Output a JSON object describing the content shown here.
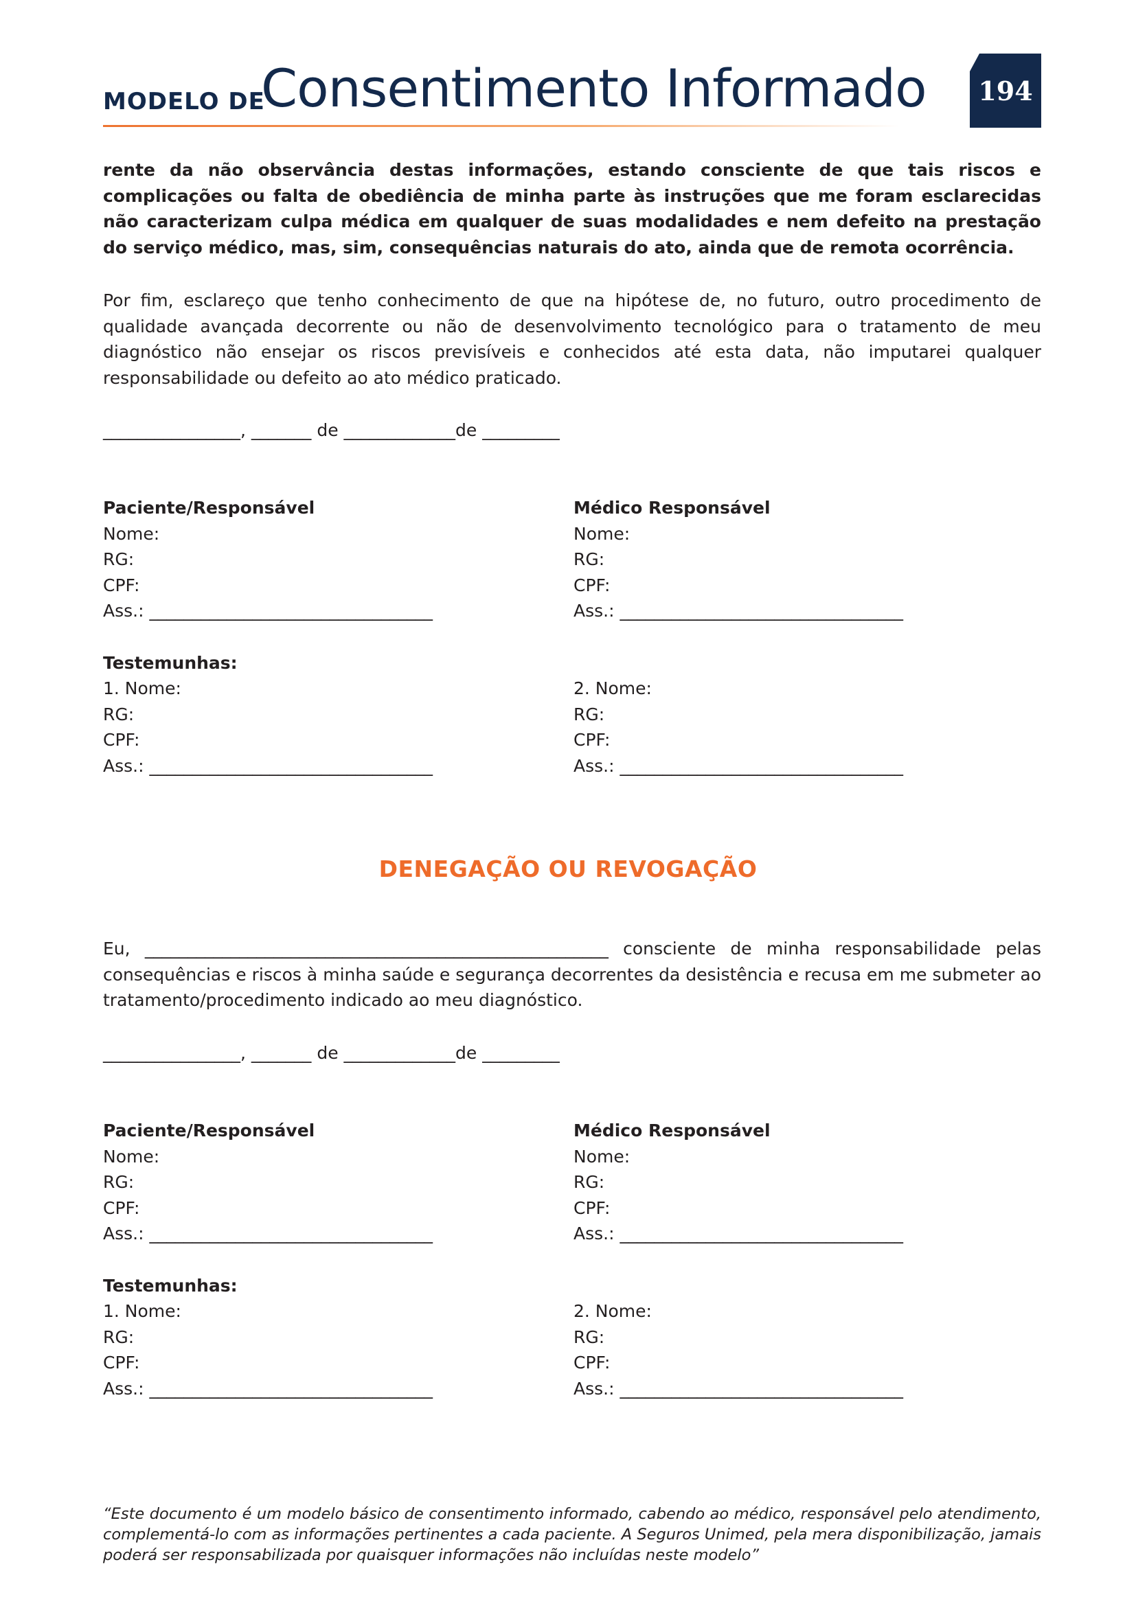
{
  "header": {
    "prefix": "MODELO DE",
    "title": "Consentimento Informado",
    "page_number": "194"
  },
  "colors": {
    "navy": "#13294b",
    "orange": "#ee6b2a"
  },
  "intro_bold": "rente da não observância destas informações, estando consciente de que tais riscos e complicações ou falta de obediência de minha parte às instruções que me foram esclarecidas não caracterizam culpa médica em qualquer de suas modalidades e nem defeito na prestação do serviço médico, mas, sim, consequências naturais do ato, ainda que de remota ocorrência.",
  "final_paragraph": "Por fim, esclareço que tenho conhecimento de que na hipótese de, no futuro, outro procedimento de qualidade avançada decorrente ou não de desenvolvimento tecnológico para o tratamento de meu diagnóstico não ensejar os riscos previsíveis e conhecidos até esta data, não imputarei qualquer responsabilidade ou defeito ao ato médico praticado.",
  "date_line": "________________, _______ de _____________de _________",
  "sig_block": {
    "patient_title": "Paciente/Responsável",
    "doctor_title": "Médico Responsável",
    "nome": "Nome:",
    "rg": "RG:",
    "cpf": "CPF:",
    "ass": "Ass.: _________________________________",
    "witnesses_title": "Testemunhas:",
    "witness1": "1. Nome:",
    "witness2": "2. Nome:"
  },
  "denegacao": {
    "title": "DENEGAÇÃO OU REVOGAÇÃO",
    "text": "Eu, ______________________________________________________ consciente de minha responsabilidade pelas consequências e riscos à minha saúde e segurança decorrentes da desistência e recusa em me submeter ao tratamento/procedimento indicado ao meu diagnóstico."
  },
  "footer": "“Este documento é um modelo básico de consentimento informado, cabendo ao médico, responsável pelo atendimento, complementá-lo com as informações pertinentes a cada paciente. A Seguros Unimed, pela mera disponibilização, jamais poderá ser responsabilizada por quaisquer informações não incluídas neste modelo”"
}
